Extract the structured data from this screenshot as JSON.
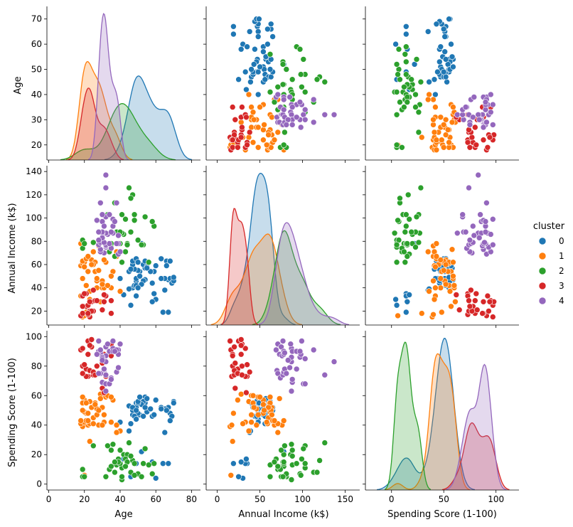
{
  "chart_data": {
    "type": "scatter",
    "title": "",
    "figure_kind": "pairplot",
    "variables": [
      {
        "key": "age",
        "label": "Age",
        "lim": [
          14,
          75
        ],
        "ticks": [
          20,
          30,
          40,
          50,
          60,
          70
        ],
        "xlim": [
          -1,
          85
        ],
        "xticks": [
          0,
          20,
          40,
          60,
          80
        ]
      },
      {
        "key": "income",
        "label": "Annual Income (k$)",
        "lim": [
          8,
          145
        ],
        "ticks": [
          20,
          40,
          60,
          80,
          100,
          120,
          140
        ],
        "xlim": [
          -13,
          167
        ],
        "xticks": [
          0,
          50,
          100,
          150
        ]
      },
      {
        "key": "score",
        "label": "Spending Score (1-100)",
        "lim": [
          -4,
          104
        ],
        "ticks": [
          0,
          20,
          40,
          60,
          80,
          100
        ],
        "xlim": [
          -25,
          122
        ],
        "xticks": [
          0,
          50,
          100
        ]
      }
    ],
    "legend": {
      "title": "cluster",
      "position": "right",
      "entries": [
        {
          "label": "0",
          "color": "#1f77b4"
        },
        {
          "label": "1",
          "color": "#ff7f0e"
        },
        {
          "label": "2",
          "color": "#2ca02c"
        },
        {
          "label": "3",
          "color": "#d62728"
        },
        {
          "label": "4",
          "color": "#9467bd"
        }
      ]
    },
    "series": [
      {
        "name": "0",
        "color": "#1f77b4",
        "points": [
          [
            67,
            47,
            52
          ],
          [
            54,
            47,
            59
          ],
          [
            68,
            48,
            48
          ],
          [
            47,
            40,
            47
          ],
          [
            48,
            42,
            52
          ],
          [
            58,
            44,
            46
          ],
          [
            49,
            46,
            55
          ],
          [
            59,
            54,
            47
          ],
          [
            51,
            54,
            47
          ],
          [
            50,
            55,
            48
          ],
          [
            69,
            44,
            46
          ],
          [
            49,
            42,
            52
          ],
          [
            65,
            48,
            51
          ],
          [
            54,
            57,
            55
          ],
          [
            48,
            56,
            46
          ],
          [
            47,
            60,
            50
          ],
          [
            45,
            54,
            53
          ],
          [
            49,
            48,
            44
          ],
          [
            53,
            60,
            56
          ],
          [
            57,
            54,
            51
          ],
          [
            55,
            58,
            49
          ],
          [
            53,
            46,
            46
          ],
          [
            47,
            63,
            52
          ],
          [
            52,
            43,
            54
          ],
          [
            49,
            65,
            50
          ],
          [
            66,
            63,
            50
          ],
          [
            54,
            63,
            52
          ],
          [
            68,
            63,
            43
          ],
          [
            63,
            65,
            52
          ],
          [
            70,
            46,
            56
          ],
          [
            64,
            19,
            14
          ],
          [
            67,
            19,
            14
          ],
          [
            60,
            30,
            4
          ],
          [
            59,
            35,
            14
          ],
          [
            65,
            38,
            35
          ],
          [
            57,
            54,
            51
          ],
          [
            66,
            59,
            50
          ],
          [
            63,
            48,
            51
          ],
          [
            50,
            40,
            55
          ],
          [
            46,
            25,
            5
          ],
          [
            49,
            33,
            14
          ],
          [
            42,
            34,
            17
          ],
          [
            58,
            28,
            15
          ],
          [
            70,
            49,
            55
          ],
          [
            55,
            57,
            58
          ],
          [
            40,
            48,
            42
          ],
          [
            50,
            62,
            56
          ],
          [
            45,
            39,
            36
          ],
          [
            52,
            78,
            22
          ],
          [
            51,
            50,
            59
          ],
          [
            46,
            56,
            41
          ],
          [
            60,
            59,
            57
          ]
        ]
      },
      {
        "name": "1",
        "color": "#ff7f0e",
        "points": [
          [
            19,
            15,
            39
          ],
          [
            20,
            16,
            6
          ],
          [
            22,
            17,
            40
          ],
          [
            23,
            18,
            29
          ],
          [
            21,
            19,
            48
          ],
          [
            20,
            24,
            57
          ],
          [
            18,
            33,
            42
          ],
          [
            19,
            48,
            59
          ],
          [
            18,
            59,
            41
          ],
          [
            19,
            61,
            55
          ],
          [
            20,
            62,
            49
          ],
          [
            27,
            40,
            47
          ],
          [
            35,
            40,
            42
          ],
          [
            30,
            40,
            60
          ],
          [
            29,
            28,
            61
          ],
          [
            31,
            40,
            42
          ],
          [
            24,
            64,
            52
          ],
          [
            26,
            62,
            55
          ],
          [
            22,
            54,
            48
          ],
          [
            23,
            37,
            56
          ],
          [
            21,
            42,
            55
          ],
          [
            19,
            63,
            50
          ],
          [
            27,
            46,
            51
          ],
          [
            32,
            62,
            59
          ],
          [
            33,
            42,
            60
          ],
          [
            36,
            54,
            57
          ],
          [
            28,
            76,
            40
          ],
          [
            25,
            60,
            45
          ],
          [
            38,
            67,
            40
          ],
          [
            40,
            37,
            36
          ],
          [
            24,
            60,
            52
          ],
          [
            29,
            73,
            58
          ],
          [
            35,
            50,
            59
          ],
          [
            30,
            46,
            40
          ],
          [
            38,
            71,
            35
          ],
          [
            20,
            58,
            42
          ],
          [
            26,
            54,
            54
          ],
          [
            30,
            43,
            52
          ],
          [
            27,
            48,
            47
          ],
          [
            21,
            65,
            43
          ],
          [
            18,
            78,
            43
          ],
          [
            28,
            55,
            50
          ],
          [
            23,
            30,
            41
          ],
          [
            25,
            71,
            41
          ],
          [
            31,
            64,
            47
          ],
          [
            22,
            67,
            43
          ]
        ]
      },
      {
        "name": "2",
        "color": "#2ca02c",
        "points": [
          [
            19,
            81,
            5
          ],
          [
            38,
            88,
            13
          ],
          [
            45,
            126,
            28
          ],
          [
            47,
            120,
            16
          ],
          [
            41,
            103,
            11
          ],
          [
            42,
            86,
            20
          ],
          [
            34,
            71,
            10
          ],
          [
            44,
            78,
            20
          ],
          [
            43,
            99,
            17
          ],
          [
            37,
            113,
            8
          ],
          [
            59,
            93,
            14
          ],
          [
            53,
            77,
            14
          ],
          [
            35,
            78,
            12
          ],
          [
            48,
            103,
            14
          ],
          [
            41,
            87,
            3
          ],
          [
            32,
            75,
            5
          ],
          [
            44,
            77,
            15
          ],
          [
            40,
            78,
            14
          ],
          [
            33,
            103,
            26
          ],
          [
            19,
            74,
            10
          ],
          [
            36,
            87,
            27
          ],
          [
            20,
            78,
            5
          ],
          [
            39,
            69,
            17
          ],
          [
            50,
            81,
            7
          ],
          [
            46,
            117,
            8
          ],
          [
            54,
            101,
            24
          ],
          [
            56,
            62,
            13
          ],
          [
            40,
            88,
            23
          ],
          [
            58,
            97,
            7
          ],
          [
            41,
            62,
            5
          ],
          [
            43,
            71,
            12
          ],
          [
            46,
            88,
            19
          ],
          [
            39,
            78,
            15
          ],
          [
            48,
            98,
            6
          ],
          [
            52,
            77,
            5
          ],
          [
            35,
            75,
            23
          ],
          [
            25,
            79,
            26
          ],
          [
            37,
            67,
            15
          ]
        ]
      },
      {
        "name": "3",
        "color": "#d62728",
        "points": [
          [
            18,
            16,
            91
          ],
          [
            19,
            18,
            80
          ],
          [
            21,
            24,
            78
          ],
          [
            19,
            33,
            92
          ],
          [
            23,
            15,
            97
          ],
          [
            22,
            17,
            73
          ],
          [
            25,
            20,
            74
          ],
          [
            35,
            29,
            95
          ],
          [
            23,
            20,
            77
          ],
          [
            30,
            21,
            82
          ],
          [
            21,
            35,
            73
          ],
          [
            31,
            28,
            88
          ],
          [
            22,
            25,
            97
          ],
          [
            24,
            28,
            98
          ],
          [
            24,
            20,
            93
          ],
          [
            22,
            18,
            88
          ],
          [
            19,
            24,
            75
          ],
          [
            20,
            35,
            81
          ],
          [
            25,
            38,
            76
          ],
          [
            32,
            33,
            73
          ],
          [
            26,
            29,
            74
          ],
          [
            23,
            28,
            94
          ],
          [
            35,
            18,
            87
          ],
          [
            30,
            21,
            65
          ],
          [
            27,
            29,
            80
          ],
          [
            31,
            34,
            62
          ]
        ]
      },
      {
        "name": "4",
        "color": "#9467bd",
        "points": [
          [
            39,
            69,
            91
          ],
          [
            31,
            70,
            77
          ],
          [
            40,
            71,
            95
          ],
          [
            29,
            71,
            75
          ],
          [
            29,
            73,
            88
          ],
          [
            35,
            74,
            72
          ],
          [
            32,
            75,
            93
          ],
          [
            32,
            76,
            87
          ],
          [
            28,
            77,
            97
          ],
          [
            32,
            77,
            74
          ],
          [
            34,
            78,
            90
          ],
          [
            39,
            78,
            88
          ],
          [
            38,
            78,
            76
          ],
          [
            29,
            79,
            89
          ],
          [
            31,
            79,
            78
          ],
          [
            36,
            87,
            92
          ],
          [
            32,
            87,
            63
          ],
          [
            33,
            86,
            95
          ],
          [
            32,
            87,
            83
          ],
          [
            30,
            87,
            86
          ],
          [
            30,
            88,
            69
          ],
          [
            28,
            88,
            90
          ],
          [
            36,
            93,
            90
          ],
          [
            30,
            97,
            86
          ],
          [
            27,
            98,
            88
          ],
          [
            32,
            101,
            68
          ],
          [
            30,
            103,
            85
          ],
          [
            29,
            113,
            91
          ],
          [
            36,
            99,
            97
          ],
          [
            32,
            126,
            74
          ],
          [
            38,
            113,
            91
          ],
          [
            32,
            137,
            83
          ],
          [
            37,
            97,
            90
          ],
          [
            31,
            93,
            78
          ],
          [
            34,
            103,
            68
          ],
          [
            30,
            83,
            84
          ],
          [
            28,
            81,
            75
          ],
          [
            39,
            85,
            79
          ],
          [
            35,
            88,
            71
          ]
        ]
      }
    ]
  }
}
